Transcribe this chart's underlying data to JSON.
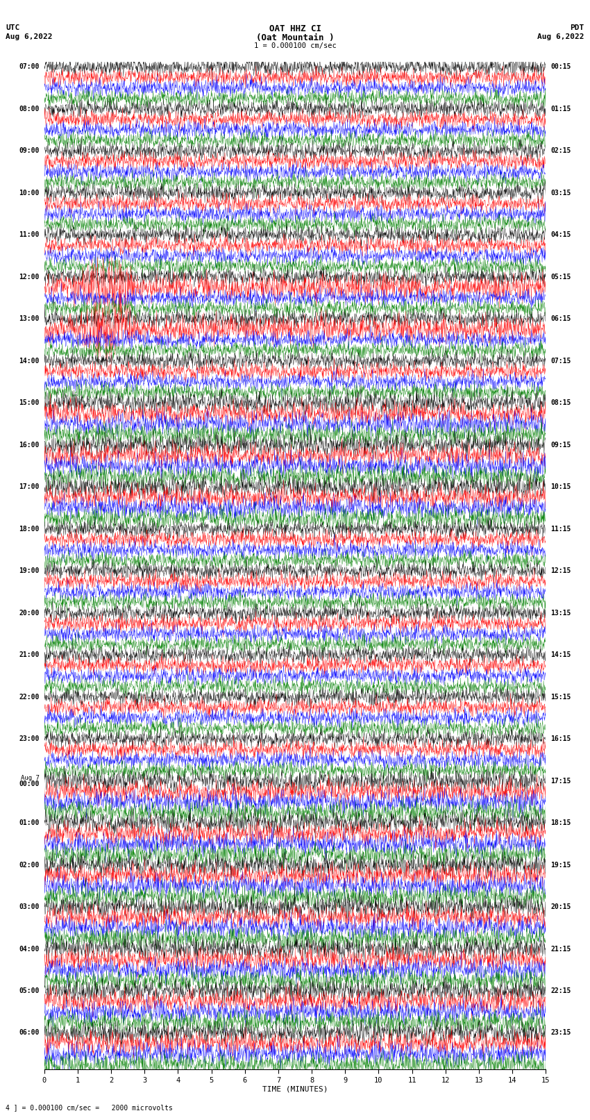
{
  "title_line1": "OAT HHZ CI",
  "title_line2": "(Oat Mountain )",
  "title_scale": "1 = 0.000100 cm/sec",
  "left_timezone": "UTC",
  "left_date": "Aug 6,2022",
  "right_timezone": "PDT",
  "right_date": "Aug 6,2022",
  "bottom_label": "TIME (MINUTES)",
  "bottom_note": "4 ] = 0.000100 cm/sec =   2000 microvolts",
  "xlabel_ticks": [
    0,
    1,
    2,
    3,
    4,
    5,
    6,
    7,
    8,
    9,
    10,
    11,
    12,
    13,
    14,
    15
  ],
  "trace_colors": [
    "black",
    "red",
    "blue",
    "green"
  ],
  "left_times": [
    "07:00",
    "08:00",
    "09:00",
    "10:00",
    "11:00",
    "12:00",
    "13:00",
    "14:00",
    "15:00",
    "16:00",
    "17:00",
    "18:00",
    "19:00",
    "20:00",
    "21:00",
    "22:00",
    "23:00",
    "Aug 7\n00:00",
    "01:00",
    "02:00",
    "03:00",
    "04:00",
    "05:00",
    "06:00"
  ],
  "right_times": [
    "00:15",
    "01:15",
    "02:15",
    "03:15",
    "04:15",
    "05:15",
    "06:15",
    "07:15",
    "08:15",
    "09:15",
    "10:15",
    "11:15",
    "12:15",
    "13:15",
    "14:15",
    "15:15",
    "16:15",
    "17:15",
    "18:15",
    "19:15",
    "20:15",
    "21:15",
    "22:15",
    "23:15"
  ],
  "n_rows": 24,
  "n_traces_per_row": 4,
  "minutes_per_row": 15,
  "background_color": "white",
  "fig_width": 8.5,
  "fig_height": 16.13,
  "dpi": 100
}
